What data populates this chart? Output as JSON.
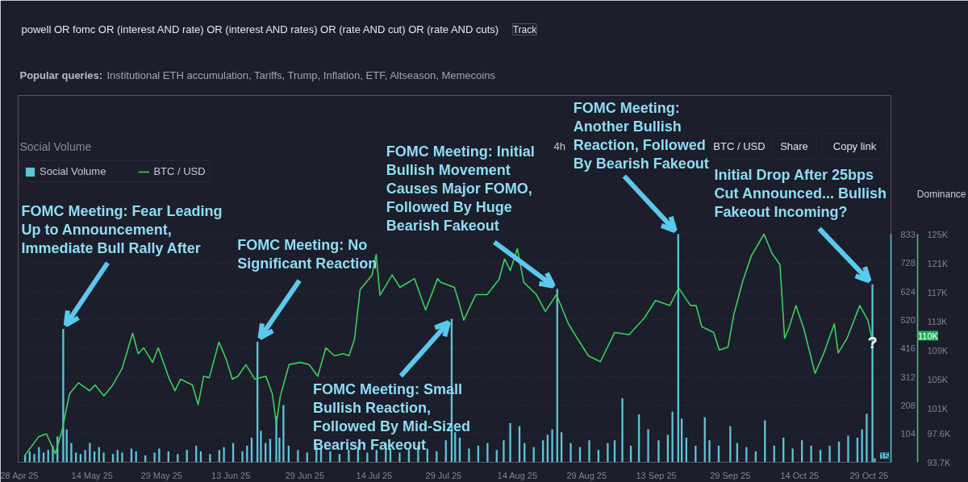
{
  "chart_data": {
    "type": "bar",
    "title": "Social Volume",
    "series": [
      {
        "name": "Social Volume",
        "color": "#5ec4d8",
        "x": [
          "2025-04-29T12:00",
          "2025-04-30T12:00",
          "2025-05-01T12:00",
          "2025-05-02T12:00",
          "2025-05-03T12:00",
          "2025-05-04T12:00",
          "2025-05-05T12:00",
          "2025-05-06T12:00",
          "2025-05-07T18:00",
          "2025-05-08T12:00",
          "2025-05-09T12:00",
          "2025-05-10T12:00",
          "2025-05-11T12:00",
          "2025-05-12T12:00",
          "2025-05-13T12:00",
          "2025-05-14T12:00",
          "2025-05-15T12:00",
          "2025-05-16T12:00",
          "2025-05-18T12:00",
          "2025-05-19T12:00",
          "2025-05-20T12:00",
          "2025-05-22T12:00",
          "2025-05-23T12:00",
          "2025-05-25T12:00",
          "2025-05-27T12:00",
          "2025-05-28T12:00",
          "2025-05-30T12:00",
          "2025-06-01T12:00",
          "2025-06-03T12:00",
          "2025-06-05T12:00",
          "2025-06-06T12:00",
          "2025-06-08T12:00",
          "2025-06-10T12:00",
          "2025-06-11T12:00",
          "2025-06-13T12:00",
          "2025-06-15T12:00",
          "2025-06-16T12:00",
          "2025-06-17T12:00",
          "2025-06-18T18:00",
          "2025-06-19T12:00",
          "2025-06-20T12:00",
          "2025-06-21T12:00",
          "2025-06-22T20:00",
          "2025-06-23T12:00",
          "2025-06-24T09:00",
          "2025-06-25T12:00",
          "2025-06-27T12:00",
          "2025-06-29T12:00",
          "2025-07-01T12:00",
          "2025-07-02T12:00",
          "2025-07-04T12:00",
          "2025-07-06T12:00",
          "2025-07-08T12:00",
          "2025-07-10T12:00",
          "2025-07-12T12:00",
          "2025-07-14T12:00",
          "2025-07-16T12:00",
          "2025-07-17T12:00",
          "2025-07-19T12:00",
          "2025-07-21T12:00",
          "2025-07-23T12:00",
          "2025-07-25T12:00",
          "2025-07-27T12:00",
          "2025-07-29T12:00",
          "2025-07-30T18:00",
          "2025-07-31T12:00",
          "2025-08-01T12:00",
          "2025-08-03T12:00",
          "2025-08-05T12:00",
          "2025-08-07T12:00",
          "2025-08-09T12:00",
          "2025-08-11T00:00",
          "2025-08-12T10:00",
          "2025-08-14T10:00",
          "2025-08-15T12:00",
          "2025-08-17T12:00",
          "2025-08-19T12:00",
          "2025-08-20T12:00",
          "2025-08-21T12:00",
          "2025-08-22T14:00",
          "2025-08-23T12:00",
          "2025-08-25T12:00",
          "2025-08-27T12:00",
          "2025-08-29T12:00",
          "2025-08-31T12:00",
          "2025-09-02T12:00",
          "2025-09-04T00:00",
          "2025-09-05T16:00",
          "2025-09-07T12:00",
          "2025-09-09T06:00",
          "2025-09-11T06:00",
          "2025-09-13T12:00",
          "2025-09-15T12:00",
          "2025-09-16T12:00",
          "2025-09-17T18:00",
          "2025-09-18T12:00",
          "2025-09-19T12:00",
          "2025-09-21T12:00",
          "2025-09-23T12:00",
          "2025-09-24T12:00",
          "2025-09-26T12:00",
          "2025-09-29T00:00",
          "2025-09-30T12:00",
          "2025-10-02T12:00",
          "2025-10-04T12:00",
          "2025-10-06T12:00",
          "2025-10-08T12:00",
          "2025-10-10T12:00",
          "2025-10-12T12:00",
          "2025-10-14T12:00",
          "2025-10-16T12:00",
          "2025-10-18T12:00",
          "2025-10-20T12:00",
          "2025-10-22T12:00",
          "2025-10-24T12:00",
          "2025-10-26T12:00",
          "2025-10-27T12:00",
          "2025-10-28T12:00",
          "2025-10-29T18:00",
          "2025-10-30T06:00"
        ],
        "values": [
          25,
          40,
          30,
          55,
          35,
          45,
          60,
          94,
          487,
          120,
          70,
          35,
          30,
          45,
          71,
          40,
          55,
          35,
          30,
          45,
          35,
          50,
          40,
          25,
          35,
          50,
          40,
          30,
          45,
          60,
          40,
          30,
          45,
          55,
          70,
          40,
          60,
          90,
          440,
          115,
          70,
          85,
          168,
          90,
          209,
          60,
          45,
          35,
          60,
          50,
          40,
          30,
          45,
          55,
          35,
          45,
          70,
          50,
          35,
          45,
          60,
          50,
          40,
          80,
          524,
          110,
          90,
          50,
          60,
          70,
          45,
          80,
          143,
          132,
          70,
          55,
          80,
          100,
          120,
          633,
          110,
          70,
          55,
          80,
          45,
          70,
          80,
          234,
          60,
          175,
          121,
          80,
          100,
          185,
          833,
          160,
          90,
          60,
          165,
          80,
          60,
          132,
          70,
          55,
          40,
          153,
          60,
          90,
          50,
          80,
          60,
          45,
          60,
          75,
          97,
          90,
          120,
          177,
          650,
          15
        ]
      },
      {
        "name": "BTC / USD",
        "type": "line",
        "axis": "y2",
        "color": "#3ccf5c",
        "x": [
          "2025-04-29T07:00",
          "2025-05-02T10:00",
          "2025-05-04T03:00",
          "2025-05-06T01:00",
          "2025-05-07T14:00",
          "2025-05-08T11:00",
          "2025-05-09T03:00",
          "2025-05-11T01:00",
          "2025-05-13T11:00",
          "2025-05-14T16:00",
          "2025-05-16T13:00",
          "2025-05-18T11:00",
          "2025-05-20T12:00",
          "2025-05-22T18:00",
          "2025-05-23T23:00",
          "2025-05-25T04:00",
          "2025-05-27T02:00",
          "2025-05-28T07:00",
          "2025-05-30T17:00",
          "2025-05-31T22:00",
          "2025-06-02T03:00",
          "2025-06-04T17:00",
          "2025-06-05T22:00",
          "2025-06-07T03:00",
          "2025-06-08T08:00",
          "2025-06-10T10:00",
          "2025-06-11T23:00",
          "2025-06-13T08:00",
          "2025-06-14T13:00",
          "2025-06-16T06:00",
          "2025-06-18T04:00",
          "2025-06-20T14:00",
          "2025-06-21T23:00",
          "2025-06-22T20:00",
          "2025-06-23T17:00",
          "2025-06-25T14:00",
          "2025-06-28T00:00",
          "2025-06-29T22:00",
          "2025-07-01T19:00",
          "2025-07-03T13:00",
          "2025-07-05T10:00",
          "2025-07-07T08:00",
          "2025-07-08T13:00",
          "2025-07-09T18:00",
          "2025-07-10T23:00",
          "2025-07-13T13:00",
          "2025-07-14T10:00",
          "2025-07-15T06:00",
          "2025-07-17T21:00",
          "2025-07-19T14:00",
          "2025-07-22T17:00",
          "2025-07-25T03:00",
          "2025-07-27T17:00",
          "2025-07-28T09:00",
          "2025-07-31T08:00",
          "2025-08-01T05:00",
          "2025-08-02T09:00",
          "2025-08-04T23:00",
          "2025-08-07T10:00",
          "2025-08-10T00:00",
          "2025-08-11T05:00",
          "2025-08-12T10:00",
          "2025-08-13T23:00",
          "2025-08-15T08:00",
          "2025-08-18T02:00",
          "2025-08-20T00:00",
          "2025-08-22T10:00",
          "2025-08-25T00:00",
          "2025-08-26T22:00",
          "2025-08-29T08:00",
          "2025-08-31T22:00",
          "2025-09-04T00:00",
          "2025-09-07T03:00",
          "2025-09-10T10:00",
          "2025-09-12T20:00",
          "2025-09-15T22:00",
          "2025-09-17T20:00",
          "2025-09-20T10:00",
          "2025-09-21T15:00",
          "2025-09-22T20:00",
          "2025-09-25T10:00",
          "2025-09-26T15:00",
          "2025-09-28T12:00",
          "2025-09-29T18:00",
          "2025-10-01T15:00",
          "2025-10-03T13:00",
          "2025-10-06T07:00",
          "2025-10-08T00:00",
          "2025-10-09T18:00",
          "2025-10-10T18:00",
          "2025-10-11T15:00",
          "2025-10-13T05:00",
          "2025-10-14T22:00",
          "2025-10-17T08:00",
          "2025-10-19T06:00",
          "2025-10-21T12:00",
          "2025-10-22T08:00",
          "2025-10-24T06:00",
          "2025-10-27T00:00",
          "2025-10-28T18:00",
          "2025-10-29T18:00"
        ],
        "values": [
          94500,
          97200,
          97600,
          94900,
          98300,
          101100,
          103100,
          104600,
          103500,
          104300,
          102800,
          104300,
          106600,
          111400,
          108600,
          109400,
          107400,
          109400,
          105100,
          103500,
          105100,
          104300,
          101600,
          105500,
          105300,
          110200,
          107900,
          105100,
          105500,
          107100,
          105100,
          105500,
          103100,
          99000,
          102800,
          107100,
          107400,
          107100,
          105500,
          109400,
          108300,
          108600,
          108300,
          110600,
          117400,
          119400,
          122200,
          116600,
          119400,
          117700,
          118900,
          114600,
          118900,
          118400,
          117700,
          115900,
          113200,
          116700,
          116700,
          118800,
          121600,
          120000,
          123000,
          118400,
          116700,
          114400,
          116700,
          112700,
          110700,
          108300,
          107500,
          111500,
          111200,
          113500,
          115900,
          115200,
          117600,
          115200,
          115200,
          112300,
          111500,
          109100,
          109500,
          113900,
          118400,
          122000,
          125000,
          122400,
          120800,
          110700,
          112000,
          115200,
          112000,
          105900,
          108700,
          112700,
          108700,
          110700,
          115200,
          113200,
          110400
        ]
      }
    ],
    "xlim": [
      "2025-04-28",
      "2025-11-02T18:00"
    ],
    "xticks": [
      {
        "value": "2025-04-28",
        "label": "28 Apr 25"
      },
      {
        "value": "2025-05-14",
        "label": "14 May 25"
      },
      {
        "value": "2025-05-29",
        "label": "29 May 25"
      },
      {
        "value": "2025-06-13",
        "label": "13 Jun 25"
      },
      {
        "value": "2025-06-29",
        "label": "29 Jun 25"
      },
      {
        "value": "2025-07-14",
        "label": "14 Jul 25"
      },
      {
        "value": "2025-07-29",
        "label": "29 Jul 25"
      },
      {
        "value": "2025-08-14",
        "label": "14 Aug 25"
      },
      {
        "value": "2025-08-29",
        "label": "29 Aug 25"
      },
      {
        "value": "2025-09-13",
        "label": "13 Sep 25"
      },
      {
        "value": "2025-09-29",
        "label": "29 Sep 25"
      },
      {
        "value": "2025-10-14",
        "label": "14 Oct 25"
      },
      {
        "value": "2025-10-29",
        "label": "29 Oct 25"
      }
    ],
    "ylim": [
      0,
      833
    ],
    "yticks": [
      104,
      208,
      312,
      416,
      520,
      624,
      728,
      833
    ],
    "y2lim": [
      93700,
      125000
    ],
    "y2ticks": [
      {
        "value": 93700,
        "label": "93.7K"
      },
      {
        "value": 97600,
        "label": "97.6K"
      },
      {
        "value": 101000,
        "label": "101K"
      },
      {
        "value": 105000,
        "label": "105K"
      },
      {
        "value": 109000,
        "label": "109K"
      },
      {
        "value": 113000,
        "label": "113K"
      },
      {
        "value": 117000,
        "label": "117K"
      },
      {
        "value": 121000,
        "label": "121K"
      },
      {
        "value": 125000,
        "label": "125K"
      }
    ],
    "grid": "y",
    "legend": "top left",
    "annotations": [
      {
        "text": "FOMC Meeting: Fear Leading Up to Announcement, Immediate Bull Rally After",
        "x": "2025-05-07T18:00",
        "y": 487
      },
      {
        "text": "FOMC Meeting: No Significant Reaction",
        "x": "2025-06-18T18:00",
        "y": 440
      },
      {
        "text": "FOMC Meeting: Small Bullish Reaction, Followed By Mid-Sized Bearish Fakeout",
        "x": "2025-07-30T18:00",
        "y": 524
      },
      {
        "text": "FOMC Meeting: Initial Bullish Movement Causes Major FOMO, Followed By Huge Bearish Fakeout",
        "x": "2025-08-22T14:00",
        "y": 633
      },
      {
        "text": "FOMC Meeting: Another Bullish Reaction, Followed By Bearish Fakeout",
        "x": "2025-09-17T18:00",
        "y": 833
      },
      {
        "text": "Initial Drop After 25bps Cut Announced... Bullish Fakeout Incoming?",
        "x": "2025-10-29T18:00",
        "y": 650
      },
      {
        "text": "?",
        "x": "2025-10-29T18:00",
        "y": 436
      },
      "powell OR fomc OR (interest AND rate) OR (interest AND rates) OR (rate AND cut) OR (rate AND cuts)",
      "Track",
      "Popular queries:",
      "Institutional ETH accumulation, Tariffs, Trump, Inflation, ETF, Altseason, Memecoins",
      "4h",
      "BTC / USD",
      "Share",
      "Copy link",
      "Dominance",
      "110K",
      "15"
    ]
  }
}
